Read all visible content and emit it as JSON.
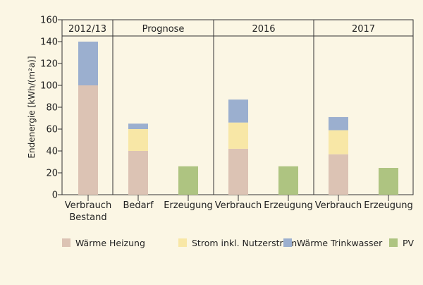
{
  "chart_data": {
    "type": "bar",
    "stacked": true,
    "ylabel": "Endenergie [kWh/(m²a)]",
    "ylim": [
      0,
      160
    ],
    "yticks": [
      0,
      20,
      40,
      60,
      80,
      100,
      120,
      140,
      160
    ],
    "grid": false,
    "legend_position": "bottom",
    "groups": [
      {
        "title": "2012/13",
        "categories": [
          {
            "label": "Verbrauch\nBestand"
          }
        ]
      },
      {
        "title": "Prognose",
        "categories": [
          {
            "label": "Bedarf"
          },
          {
            "label": "Erzeugung"
          }
        ]
      },
      {
        "title": "2016",
        "categories": [
          {
            "label": "Verbrauch"
          },
          {
            "label": "Erzeugung"
          }
        ]
      },
      {
        "title": "2017",
        "categories": [
          {
            "label": "Verbrauch"
          },
          {
            "label": "Erzeugung"
          }
        ]
      }
    ],
    "series": [
      {
        "name": "Wärme Heizung",
        "color": "#dcc3b4",
        "values": [
          100,
          40,
          0,
          42,
          0,
          37,
          0
        ]
      },
      {
        "name": "Strom inkl. Nutzerstrom",
        "color": "#f8e7a6",
        "values": [
          0,
          20,
          0,
          24,
          0,
          22,
          0
        ]
      },
      {
        "name": "Wärme Trinkwasser",
        "color": "#9bafcf",
        "values": [
          40,
          5,
          0,
          21,
          0,
          12,
          0
        ]
      },
      {
        "name": "PV",
        "color": "#aec481",
        "values": [
          0,
          0,
          26,
          0,
          26,
          0,
          24.5
        ]
      }
    ]
  }
}
